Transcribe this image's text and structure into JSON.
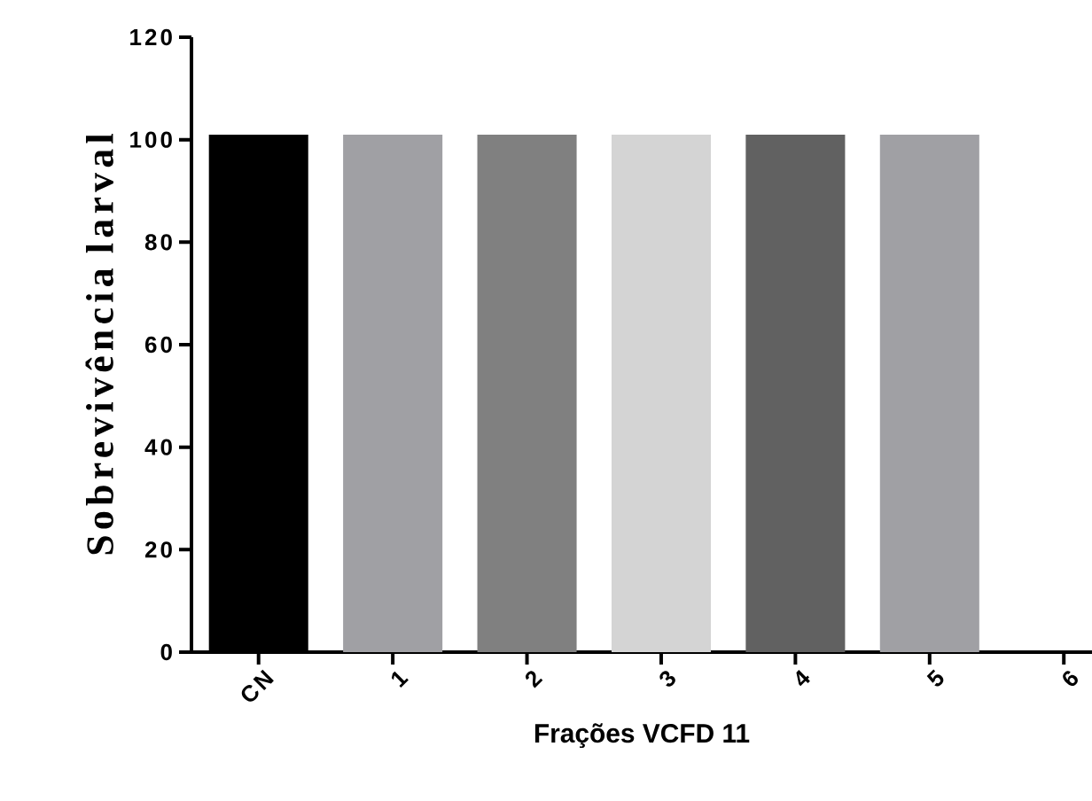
{
  "chart_data": {
    "type": "bar",
    "xlabel": "Frações VCFD 11",
    "ylabel": "Sobrevivência larval",
    "categories": [
      "CN",
      "1",
      "2",
      "3",
      "4",
      "5",
      "6"
    ],
    "values": [
      101,
      101,
      101,
      101,
      101,
      101,
      0
    ],
    "colors": [
      "#000000",
      "#a0a0a4",
      "#808080",
      "#d4d4d4",
      "#616161",
      "#a0a0a4",
      "#a0a0a4"
    ],
    "ylim": [
      0,
      120
    ],
    "yticks": [
      0,
      20,
      40,
      60,
      80,
      100,
      120
    ],
    "grid": false
  }
}
